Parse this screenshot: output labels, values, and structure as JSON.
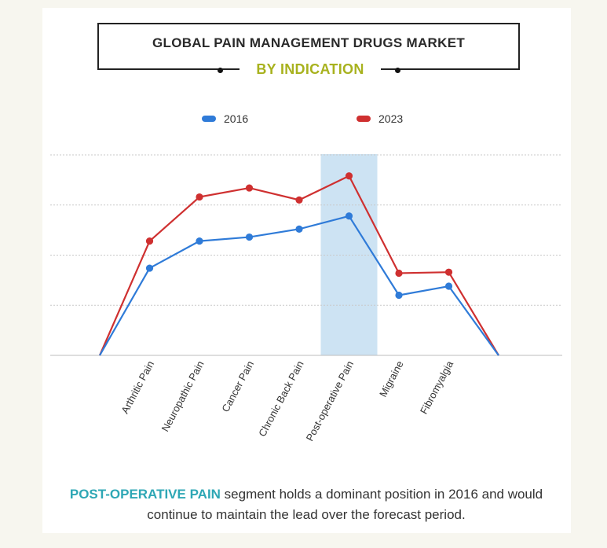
{
  "header": {
    "title": "GLOBAL PAIN MANAGEMENT DRUGS MARKET",
    "subtitle": "BY INDICATION"
  },
  "colors": {
    "series_2016": "#2f7bd8",
    "series_2023": "#cf3030",
    "highlight": "#cde3f3",
    "subtitle": "#a8b21e",
    "caption_highlight": "#2ea7b5"
  },
  "chart_data": {
    "type": "line",
    "title": "GLOBAL PAIN MANAGEMENT DRUGS MARKET BY INDICATION",
    "xlabel": "",
    "ylabel": "",
    "categories": [
      "",
      "Arthritic Pain",
      "Neuropathic Pain",
      "Cancer Pain",
      "Chronic Back Pain",
      "Post-operative Pain",
      "Migraine",
      "Fibromyalgia",
      ""
    ],
    "series": [
      {
        "name": "2016",
        "values": [
          0,
          43.5,
          57,
          59,
          63,
          69.5,
          30,
          34.5,
          0
        ]
      },
      {
        "name": "2023",
        "values": [
          0,
          57,
          79,
          83.5,
          77.5,
          89.5,
          41,
          41.5,
          0
        ]
      }
    ],
    "ylim": [
      0,
      100
    ],
    "grid": true,
    "legend": "top-center",
    "highlighted_category": "Post-operative Pain",
    "axis_labels_visible": false
  },
  "caption": {
    "highlight": "POST-OPERATIVE PAIN",
    "text": " segment holds a dominant position in 2016 and would continue to maintain the lead over the forecast period."
  }
}
